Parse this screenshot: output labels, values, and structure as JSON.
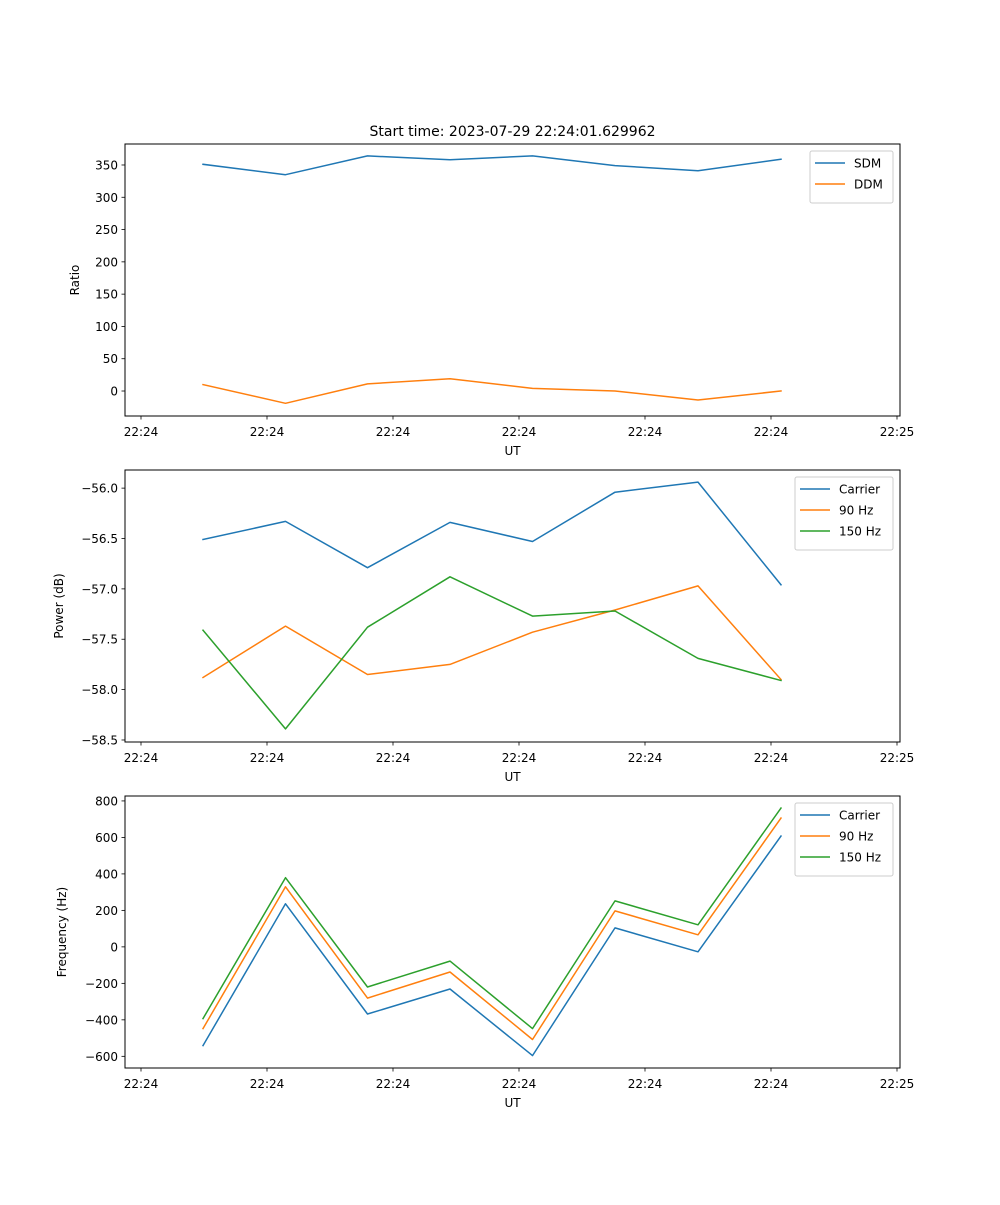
{
  "figure": {
    "title": "Start time: 2023-07-29 22:24:01.629962"
  },
  "colors": {
    "blue": "#1f77b4",
    "orange": "#ff7f0e",
    "green": "#2ca02c"
  },
  "chart_data": [
    {
      "type": "line",
      "title": "Start time: 2023-07-29 22:24:01.629962",
      "xlabel": "UT",
      "ylabel": "Ratio",
      "x_tick_labels": [
        "22:24",
        "22:24",
        "22:24",
        "22:24",
        "22:24",
        "22:24",
        "22:25"
      ],
      "x_index": [
        0,
        1,
        2,
        3,
        4,
        5,
        6,
        7
      ],
      "y_ticks": [
        0,
        50,
        100,
        150,
        200,
        250,
        300,
        350
      ],
      "y_tick_labels": [
        "0",
        "50",
        "100",
        "150",
        "200",
        "250",
        "300",
        "350"
      ],
      "ylim": [
        -38.7,
        382.5
      ],
      "grid": false,
      "legend_position": "top-right",
      "series": [
        {
          "name": "SDM",
          "color": "#1f77b4",
          "values": [
            351,
            335,
            364,
            358,
            364,
            349,
            341,
            359
          ]
        },
        {
          "name": "DDM",
          "color": "#ff7f0e",
          "values": [
            10,
            -19,
            11,
            19,
            4,
            0,
            -14,
            0
          ]
        }
      ]
    },
    {
      "type": "line",
      "title": "",
      "xlabel": "UT",
      "ylabel": "Power (dB)",
      "x_tick_labels": [
        "22:24",
        "22:24",
        "22:24",
        "22:24",
        "22:24",
        "22:24",
        "22:25"
      ],
      "x_index": [
        0,
        1,
        2,
        3,
        4,
        5,
        6,
        7
      ],
      "y_ticks": [
        -58.5,
        -58.0,
        -57.5,
        -57.0,
        -56.5,
        -56.0
      ],
      "y_tick_labels": [
        "−58.5",
        "−58.0",
        "−57.5",
        "−57.0",
        "−56.5",
        "−56.0"
      ],
      "ylim": [
        -58.52,
        -55.82
      ],
      "grid": false,
      "legend_position": "top-right",
      "series": [
        {
          "name": "Carrier",
          "color": "#1f77b4",
          "values": [
            -56.51,
            -56.33,
            -56.79,
            -56.34,
            -56.53,
            -56.04,
            -55.94,
            -56.96
          ]
        },
        {
          "name": "90 Hz",
          "color": "#ff7f0e",
          "values": [
            -57.88,
            -57.37,
            -57.85,
            -57.75,
            -57.43,
            -57.21,
            -56.97,
            -57.9
          ]
        },
        {
          "name": "150 Hz",
          "color": "#2ca02c",
          "values": [
            -57.41,
            -58.39,
            -57.38,
            -56.88,
            -57.27,
            -57.22,
            -57.69,
            -57.91
          ]
        }
      ]
    },
    {
      "type": "line",
      "title": "",
      "xlabel": "UT",
      "ylabel": "Frequency (Hz)",
      "x_tick_labels": [
        "22:24",
        "22:24",
        "22:24",
        "22:24",
        "22:24",
        "22:24",
        "22:25"
      ],
      "x_index": [
        0,
        1,
        2,
        3,
        4,
        5,
        6,
        7
      ],
      "y_ticks": [
        -600,
        -400,
        -200,
        0,
        200,
        400,
        600,
        800
      ],
      "y_tick_labels": [
        "−600",
        "−400",
        "−200",
        "0",
        "200",
        "400",
        "600",
        "800"
      ],
      "ylim": [
        -664,
        827
      ],
      "grid": false,
      "legend_position": "top-right",
      "series": [
        {
          "name": "Carrier",
          "color": "#1f77b4",
          "values": [
            -541,
            236,
            -368,
            -231,
            -596,
            104,
            -27,
            607
          ]
        },
        {
          "name": "90 Hz",
          "color": "#ff7f0e",
          "values": [
            -448,
            329,
            -281,
            -138,
            -508,
            197,
            66,
            706
          ]
        },
        {
          "name": "150 Hz",
          "color": "#2ca02c",
          "values": [
            -393,
            379,
            -220,
            -78,
            -448,
            252,
            121,
            761
          ]
        }
      ]
    }
  ]
}
